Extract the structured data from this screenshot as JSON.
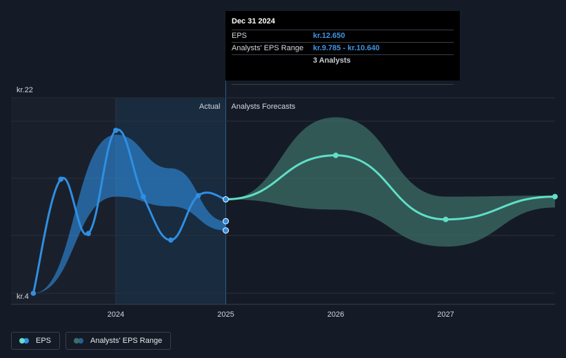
{
  "chart_data": {
    "type": "line",
    "y_axis": {
      "min": 4,
      "max": 22,
      "top_label": "kr.22",
      "bottom_label": "kr.4"
    },
    "x_ticks": [
      {
        "label": "2024",
        "year": 2024.0
      },
      {
        "label": "2025",
        "year": 2025.0
      },
      {
        "label": "2026",
        "year": 2026.0
      },
      {
        "label": "2027",
        "year": 2027.0
      }
    ],
    "regions": {
      "actual_label": "Actual",
      "forecast_label": "Analysts Forecasts"
    },
    "series": [
      {
        "name": "EPS",
        "color": "#2f8fe3",
        "points": [
          {
            "x": 2023.25,
            "y": 4.0
          },
          {
            "x": 2023.5,
            "y": 14.5
          },
          {
            "x": 2023.75,
            "y": 9.5
          },
          {
            "x": 2024.0,
            "y": 19.0
          },
          {
            "x": 2024.25,
            "y": 12.9
          },
          {
            "x": 2024.5,
            "y": 8.9
          },
          {
            "x": 2024.75,
            "y": 13.0
          },
          {
            "x": 2025.0,
            "y": 12.65
          }
        ],
        "extra_points": [
          {
            "x": 2025.0,
            "y": 10.64
          },
          {
            "x": 2025.0,
            "y": 9.785
          }
        ]
      },
      {
        "name": "EPS Forecast",
        "color": "#5ee0c8",
        "points": [
          {
            "x": 2025.0,
            "y": 12.65
          },
          {
            "x": 2026.0,
            "y": 16.7
          },
          {
            "x": 2027.0,
            "y": 10.8
          },
          {
            "x": 2028.0,
            "y": 12.9
          }
        ]
      }
    ],
    "ranges": [
      {
        "name": "Analysts' EPS Range (historical)",
        "color": "#2f8fe3",
        "upper": [
          [
            2023.25,
            4.0
          ],
          [
            2024.0,
            18.6
          ],
          [
            2024.5,
            15.5
          ],
          [
            2025.0,
            10.64
          ]
        ],
        "lower": [
          [
            2023.25,
            4.0
          ],
          [
            2024.0,
            12.9
          ],
          [
            2024.5,
            12.0
          ],
          [
            2025.0,
            9.785
          ]
        ]
      },
      {
        "name": "Analysts' EPS Range (forecast)",
        "color": "#3c6e67",
        "upper": [
          [
            2025.0,
            12.65
          ],
          [
            2026.0,
            20.2
          ],
          [
            2027.0,
            12.9
          ],
          [
            2028.0,
            13.0
          ]
        ],
        "lower": [
          [
            2025.0,
            12.65
          ],
          [
            2026.0,
            11.7
          ],
          [
            2027.0,
            8.3
          ],
          [
            2028.0,
            11.9
          ]
        ]
      }
    ]
  },
  "tooltip": {
    "date": "Dec 31 2024",
    "eps_label": "EPS",
    "eps_value": "kr.12.650",
    "range_label": "Analysts' EPS Range",
    "range_value": "kr.9.785 - kr.10.640",
    "analysts": "3 Analysts"
  },
  "legend": {
    "eps_label": "EPS",
    "range_label": "Analysts' EPS Range",
    "eps_color_a": "#5ee0c8",
    "eps_color_b": "#2f8fe3",
    "range_color_a": "#3c6e67",
    "range_color_b": "#2a5f8f"
  }
}
